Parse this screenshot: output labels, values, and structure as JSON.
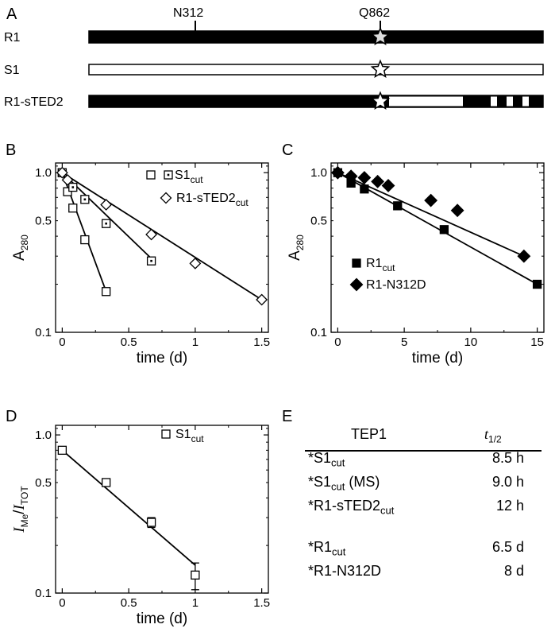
{
  "panel_letters": {
    "a": "A",
    "b": "B",
    "c": "C",
    "d": "D",
    "e": "E"
  },
  "domain_map": {
    "markers": [
      "N312",
      "Q862"
    ],
    "rows": [
      {
        "label": "R1",
        "fill": "black"
      },
      {
        "label": "S1",
        "fill": "white"
      },
      {
        "label": "R1-sTED2",
        "fill": "mixed"
      }
    ]
  },
  "colors": {
    "ink": "#000000",
    "paper": "#ffffff",
    "grid": "#000000"
  },
  "chart_data": [
    {
      "panel": "B",
      "type": "scatter",
      "y_scale": "log",
      "xlabel": "time (d)",
      "ylabel": "A280",
      "xlim": [
        -0.05,
        1.55
      ],
      "ylim": [
        0.1,
        1.15
      ],
      "x_ticks": [
        "0",
        "0.5",
        "1",
        "1.5"
      ],
      "y_ticks": [
        "0.1",
        "0.5",
        "1.0"
      ],
      "legend": "top-right",
      "series": [
        {
          "name": "S1",
          "name_sub": "cut",
          "marker": "open-square",
          "x": [
            0,
            0.04,
            0.08,
            0.17,
            0.33
          ],
          "y": [
            1.0,
            0.76,
            0.6,
            0.38,
            0.18
          ],
          "fit": [
            [
              0,
              1.0
            ],
            [
              0.33,
              0.18
            ]
          ]
        },
        {
          "name": "S1",
          "name_sub": "cut",
          "marker": "dotted-square",
          "x": [
            0,
            0.08,
            0.17,
            0.33,
            0.67
          ],
          "y": [
            1.0,
            0.81,
            0.68,
            0.48,
            0.28
          ],
          "fit": [
            [
              0,
              1.0
            ],
            [
              0.67,
              0.29
            ]
          ]
        },
        {
          "name": "R1-sTED2",
          "name_sub": "cut",
          "marker": "open-diamond",
          "x": [
            0,
            0.04,
            0.33,
            0.67,
            1.0,
            1.5
          ],
          "y": [
            1.0,
            0.9,
            0.63,
            0.41,
            0.27,
            0.16
          ],
          "fit": [
            [
              0,
              1.0
            ],
            [
              1.5,
              0.16
            ]
          ]
        }
      ]
    },
    {
      "panel": "C",
      "type": "scatter",
      "y_scale": "log",
      "xlabel": "time (d)",
      "ylabel": "A280",
      "xlim": [
        -0.5,
        15.5
      ],
      "ylim": [
        0.1,
        1.15
      ],
      "x_ticks": [
        "0",
        "5",
        "10",
        "15"
      ],
      "y_ticks": [
        "0.1",
        "0.5",
        "1.0"
      ],
      "legend": "bottom-left",
      "series": [
        {
          "name": "R1",
          "name_sub": "cut",
          "marker": "filled-square",
          "x": [
            0,
            1,
            2,
            4.5,
            8,
            15
          ],
          "y": [
            1.0,
            0.86,
            0.79,
            0.62,
            0.44,
            0.2
          ],
          "fit": [
            [
              0,
              1.0
            ],
            [
              15,
              0.2
            ]
          ]
        },
        {
          "name": "R1-N312D",
          "name_sub": "",
          "marker": "filled-diamond",
          "x": [
            0,
            1,
            2,
            3,
            3.8,
            7,
            9,
            14
          ],
          "y": [
            1.0,
            0.95,
            0.93,
            0.88,
            0.83,
            0.67,
            0.58,
            0.3
          ],
          "fit": [
            [
              0,
              1.0
            ],
            [
              14,
              0.3
            ]
          ]
        }
      ]
    },
    {
      "panel": "D",
      "type": "scatter",
      "y_scale": "log",
      "xlabel": "time (d)",
      "ylabel": "IMe/ITOT",
      "xlim": [
        -0.05,
        1.55
      ],
      "ylim": [
        0.1,
        1.15
      ],
      "x_ticks": [
        "0",
        "0.5",
        "1",
        "1.5"
      ],
      "y_ticks": [
        "0.1",
        "0.5",
        "1.0"
      ],
      "legend": "top-right",
      "series": [
        {
          "name": "S1",
          "name_sub": "cut",
          "marker": "open-square",
          "x": [
            0,
            0.33,
            0.67,
            1.0
          ],
          "y": [
            0.8,
            0.5,
            0.28,
            0.13
          ],
          "err": [
            0.02,
            0.02,
            0.02,
            0.025
          ],
          "fit": [
            [
              0,
              0.8
            ],
            [
              1.0,
              0.15
            ]
          ]
        }
      ]
    }
  ],
  "table": {
    "col_header_1": "TEP1",
    "col_header_2_main": "t",
    "col_header_2_sub": "1/2",
    "rows": [
      {
        "name": "*S1",
        "sub": "cut",
        "suffix": "",
        "value": "8.5 h"
      },
      {
        "name": "*S1",
        "sub": "cut",
        "suffix": " (MS)",
        "value": "9.0 h"
      },
      {
        "name": "*R1-sTED2",
        "sub": "cut",
        "suffix": "",
        "value": "12 h"
      },
      {
        "name": "*R1",
        "sub": "cut",
        "suffix": "",
        "value": "6.5 d"
      },
      {
        "name": "*R1-N312D",
        "sub": "",
        "suffix": "",
        "value": "8 d"
      }
    ]
  }
}
